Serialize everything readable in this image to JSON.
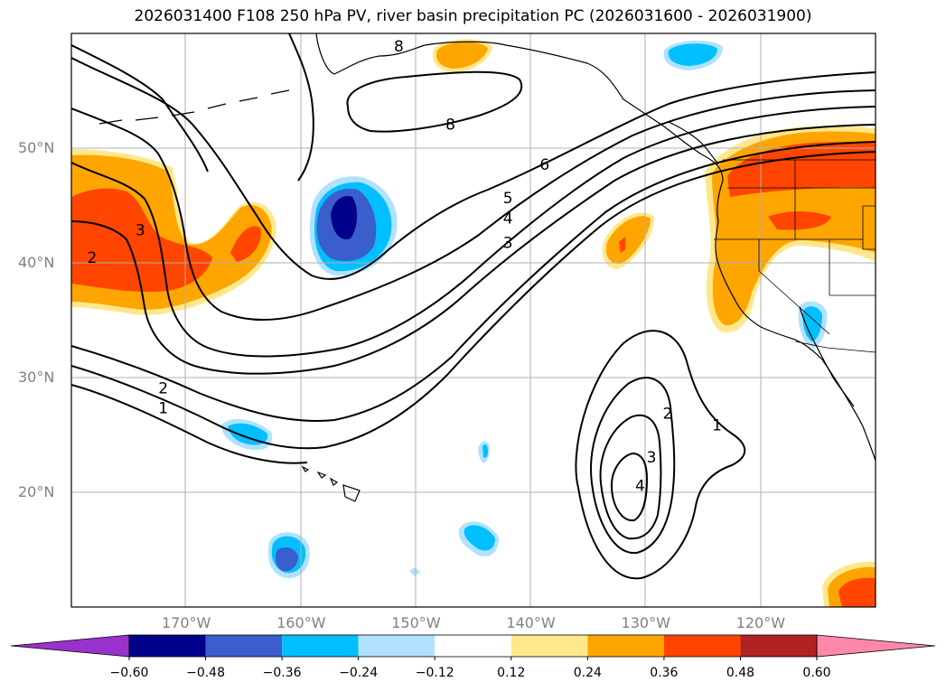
{
  "title": "2026031400 F108 250 hPa PV, river basin precipitation PC (2026031600 - 2026031900)",
  "lat_labels": [
    {
      "text": "50°N",
      "lat": 50
    },
    {
      "text": "40°N",
      "lat": 40
    },
    {
      "text": "30°N",
      "lat": 30
    },
    {
      "text": "20°N",
      "lat": 20
    }
  ],
  "lon_labels": [
    {
      "text": "170°W",
      "lon": -170
    },
    {
      "text": "160°W",
      "lon": -160
    },
    {
      "text": "150°W",
      "lon": -150
    },
    {
      "text": "140°W",
      "lon": -140
    },
    {
      "text": "130°W",
      "lon": -130
    },
    {
      "text": "120°W",
      "lon": -120
    }
  ],
  "extent": {
    "lon_min": -180,
    "lon_max": -110,
    "lat_min": 10,
    "lat_max": 60
  },
  "colorbar": {
    "ticks": [
      "−0.60",
      "−0.48",
      "−0.36",
      "−0.24",
      "−0.12",
      "0.12",
      "0.24",
      "0.36",
      "0.48",
      "0.60"
    ],
    "colors": [
      "#9932cc",
      "#00008b",
      "#3a5fcd",
      "#00bfff",
      "#b0e2ff",
      "#ffffff",
      "#ffe88c",
      "#ffa500",
      "#ff4500",
      "#b22222",
      "#ff88aa"
    ]
  },
  "contour_labels": [
    {
      "text": "8",
      "lon": -151.5,
      "lat": 58.8
    },
    {
      "text": "8",
      "lon": -147,
      "lat": 52
    },
    {
      "text": "6",
      "lon": -138.8,
      "lat": 48.5
    },
    {
      "text": "5",
      "lon": -142,
      "lat": 45.6
    },
    {
      "text": "4",
      "lon": -142,
      "lat": 43.8
    },
    {
      "text": "3",
      "lon": -142,
      "lat": 41.7
    },
    {
      "text": "3",
      "lon": -174,
      "lat": 42.8
    },
    {
      "text": "2",
      "lon": -178.2,
      "lat": 40.4
    },
    {
      "text": "2",
      "lon": -172,
      "lat": 29.0
    },
    {
      "text": "1",
      "lon": -172,
      "lat": 27.3
    },
    {
      "text": "2",
      "lon": -128.1,
      "lat": 26.8
    },
    {
      "text": "3",
      "lon": -129.5,
      "lat": 23.0
    },
    {
      "text": "4",
      "lon": -130.5,
      "lat": 20.5
    },
    {
      "text": "1",
      "lon": -123.8,
      "lat": 25.8
    }
  ]
}
